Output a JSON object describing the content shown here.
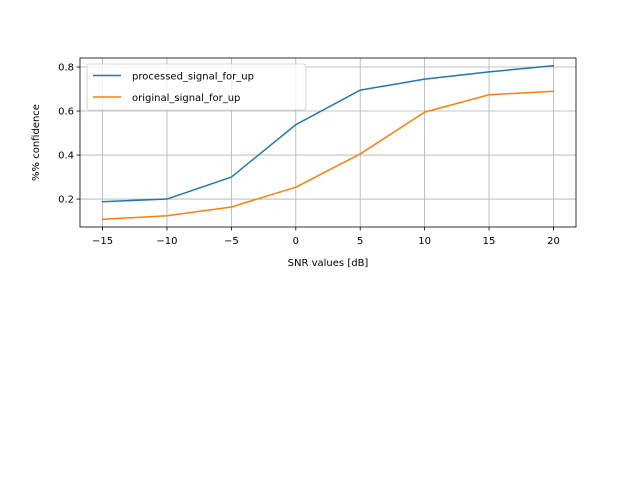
{
  "chart_data": {
    "type": "line",
    "x": [
      -15,
      -10,
      -5,
      0,
      5,
      10,
      15,
      20
    ],
    "series": [
      {
        "name": "processed_signal_for_up",
        "color": "#1f77b4",
        "values": [
          0.188,
          0.2,
          0.3,
          0.538,
          0.695,
          0.745,
          0.778,
          0.806
        ]
      },
      {
        "name": "original_signal_for_up",
        "color": "#ff7f0e",
        "values": [
          0.108,
          0.124,
          0.164,
          0.254,
          0.405,
          0.595,
          0.674,
          0.69
        ]
      }
    ],
    "xlabel": "SNR values [dB]",
    "ylabel": "%% confidence",
    "xlim": [
      -16.75,
      21.75
    ],
    "ylim": [
      0.073,
      0.841
    ],
    "xticks": [
      -15,
      -10,
      -5,
      0,
      5,
      10,
      15,
      20
    ],
    "xtick_labels": [
      "−15",
      "−10",
      "−5",
      "0",
      "5",
      "10",
      "15",
      "20"
    ],
    "yticks": [
      0.2,
      0.4,
      0.6,
      0.8
    ],
    "ytick_labels": [
      "0.2",
      "0.4",
      "0.6",
      "0.8"
    ],
    "grid": true,
    "legend_position": "top-left"
  }
}
